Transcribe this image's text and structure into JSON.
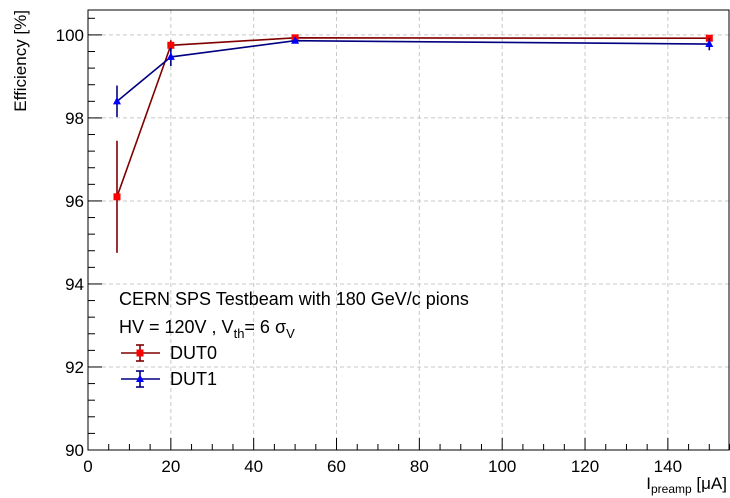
{
  "chart_data": {
    "type": "line",
    "ylabel": "Efficiency [%]",
    "xlabel_main": "I",
    "xlabel_sub": "preamp",
    "xlabel_unit": " [μA]",
    "xlim": [
      0,
      155
    ],
    "ylim": [
      90,
      100.6
    ],
    "x_major_ticks": [
      0,
      20,
      40,
      60,
      80,
      100,
      120,
      140
    ],
    "x_tick_labels": [
      "0",
      "20",
      "40",
      "60",
      "80",
      "100",
      "120",
      "140"
    ],
    "y_major_ticks": [
      90,
      92,
      94,
      96,
      98,
      100
    ],
    "y_tick_labels": [
      "90",
      "92",
      "94",
      "96",
      "98",
      "100"
    ],
    "grid": true,
    "legend_position": "lower-left",
    "annotation_line1": "CERN SPS Testbeam with 180 GeV/c pions",
    "annotation_line2": {
      "prefix": "HV = 120V , V",
      "sub1": "th",
      "mid": "= 6 σ",
      "sub2": "V"
    },
    "series": [
      {
        "name": "DUT0",
        "color": "#800000",
        "marker_color": "#ff0000",
        "marker": "square",
        "x": [
          7,
          20,
          50,
          150
        ],
        "y": [
          96.1,
          99.75,
          99.93,
          99.92
        ],
        "yerr": [
          1.35,
          0.12,
          0.04,
          0.05
        ]
      },
      {
        "name": "DUT1",
        "color": "#000080",
        "marker_color": "#0000ff",
        "marker": "triangle",
        "x": [
          7,
          20,
          50,
          150
        ],
        "y": [
          98.4,
          99.47,
          99.86,
          99.78
        ],
        "yerr": [
          0.38,
          0.22,
          0.06,
          0.15
        ]
      }
    ]
  }
}
